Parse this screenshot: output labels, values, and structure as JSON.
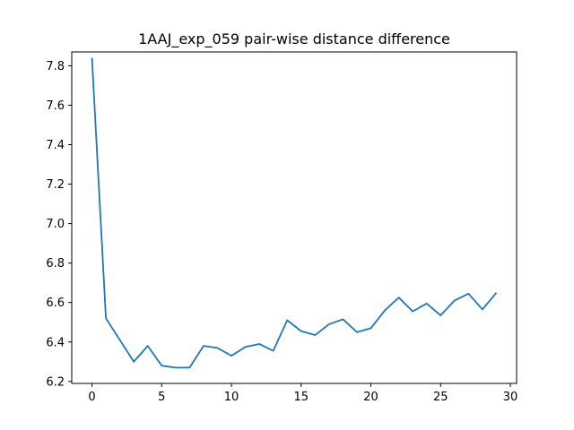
{
  "chart_data": {
    "type": "line",
    "title": "1AAJ_exp_059 pair-wise distance difference",
    "xlabel": "",
    "ylabel": "",
    "xlim": [
      -1.45,
      30.45
    ],
    "ylim": [
      6.19,
      7.87
    ],
    "grid": false,
    "x_ticks": [
      0,
      5,
      10,
      15,
      20,
      25,
      30
    ],
    "x_tick_labels": [
      "0",
      "5",
      "10",
      "15",
      "20",
      "25",
      "30"
    ],
    "y_ticks": [
      6.2,
      6.4,
      6.6,
      6.8,
      7.0,
      7.2,
      7.4,
      7.6,
      7.8
    ],
    "y_tick_labels": [
      "6.2",
      "6.4",
      "6.6",
      "6.8",
      "7.0",
      "7.2",
      "7.4",
      "7.6",
      "7.8"
    ],
    "series": [
      {
        "color": "#1f77b4",
        "x": [
          0,
          1,
          2,
          3,
          4,
          5,
          6,
          7,
          8,
          9,
          10,
          11,
          12,
          13,
          14,
          15,
          16,
          17,
          18,
          19,
          20,
          21,
          22,
          23,
          24,
          25,
          26,
          27,
          28,
          29
        ],
        "y": [
          7.84,
          6.52,
          6.41,
          6.3,
          6.38,
          6.28,
          6.27,
          6.27,
          6.38,
          6.37,
          6.33,
          6.375,
          6.39,
          6.355,
          6.51,
          6.455,
          6.435,
          6.49,
          6.515,
          6.45,
          6.47,
          6.56,
          6.625,
          6.555,
          6.595,
          6.535,
          6.61,
          6.645,
          6.565,
          6.65
        ]
      }
    ]
  }
}
